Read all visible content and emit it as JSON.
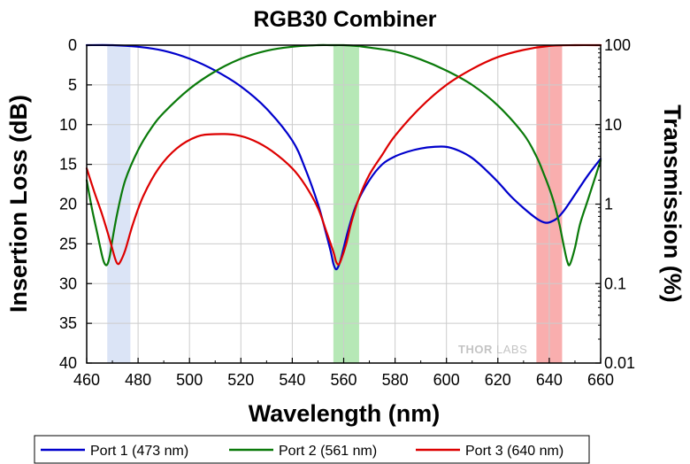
{
  "chart_data": {
    "type": "line",
    "title": "RGB30 Combiner",
    "xlabel": "Wavelength (nm)",
    "ylabel": "Insertion Loss (dB)",
    "y2label": "Transmission (%)",
    "xlim": [
      460,
      660
    ],
    "ylim": [
      0,
      40
    ],
    "y_inverted": true,
    "y2_scale": "log",
    "y2lim": [
      0.01,
      100
    ],
    "xticks": [
      "460",
      "480",
      "500",
      "520",
      "540",
      "560",
      "580",
      "600",
      "620",
      "640",
      "660"
    ],
    "yticks": [
      "0",
      "5",
      "10",
      "15",
      "20",
      "25",
      "30",
      "35",
      "40"
    ],
    "y2ticks": [
      "100",
      "10",
      "1",
      "0.1",
      "0.01"
    ],
    "grid": true,
    "legend_position": "bottom",
    "watermark": {
      "left": "THOR",
      "right": "LABS"
    },
    "bands": [
      {
        "x0": 468,
        "x1": 477,
        "color": "#dbe4f6"
      },
      {
        "x0": 556,
        "x1": 566,
        "color": "#b6e8b6"
      },
      {
        "x0": 635,
        "x1": 645,
        "color": "#f9aeae"
      }
    ],
    "series": [
      {
        "name": "Port 1 (473 nm)",
        "color": "#0000cc",
        "x": [
          460,
          470,
          480,
          490,
          500,
          510,
          520,
          530,
          540,
          545,
          550,
          553,
          555,
          556,
          557,
          558,
          559,
          560,
          562,
          565,
          570,
          575,
          580,
          585,
          590,
          595,
          600,
          605,
          610,
          615,
          620,
          625,
          630,
          635,
          638,
          640,
          643,
          646,
          650,
          655,
          660
        ],
        "values": [
          0,
          0,
          0.2,
          0.7,
          1.7,
          3.2,
          5.2,
          8,
          12,
          15.5,
          20,
          23.5,
          26,
          27.5,
          28.2,
          27.8,
          26.8,
          25.5,
          23,
          20,
          17,
          15,
          14,
          13.4,
          13,
          12.8,
          12.8,
          13.3,
          14.2,
          15.6,
          17.2,
          19,
          20.5,
          21.8,
          22.3,
          22.3,
          21.8,
          20.7,
          18.8,
          16.4,
          14.3
        ]
      },
      {
        "name": "Port 2 (561 nm)",
        "color": "#0a7a0a",
        "x": [
          460,
          462,
          464,
          466,
          467,
          468,
          469,
          470,
          472,
          475,
          480,
          485,
          490,
          500,
          510,
          520,
          530,
          540,
          550,
          555,
          560,
          565,
          570,
          580,
          590,
          600,
          610,
          620,
          630,
          635,
          638,
          640,
          642,
          644,
          645,
          646,
          647,
          648,
          650,
          652,
          655,
          660
        ],
        "values": [
          17,
          20.5,
          23.5,
          26.5,
          27.5,
          27.6,
          26.5,
          24.5,
          21,
          17,
          13.2,
          10.5,
          8.5,
          5.5,
          3.3,
          1.7,
          0.7,
          0.2,
          0,
          0,
          0,
          0.1,
          0.3,
          0.8,
          1.8,
          3.2,
          5,
          7.6,
          11.2,
          14,
          16.3,
          18,
          20,
          22.6,
          24.2,
          25.8,
          27.2,
          27.6,
          25.5,
          22.5,
          19.5,
          14.5
        ]
      },
      {
        "name": "Port 3 (640 nm)",
        "color": "#dd0000",
        "x": [
          460,
          463,
          466,
          469,
          471,
          472,
          473,
          475,
          478,
          482,
          488,
          495,
          503,
          510,
          518,
          525,
          532,
          540,
          545,
          550,
          553,
          556,
          557,
          558,
          559,
          561,
          563,
          566,
          570,
          575,
          580,
          590,
          600,
          610,
          620,
          630,
          640,
          650,
          660
        ],
        "values": [
          15.5,
          18.5,
          21.3,
          24.5,
          26.8,
          27.5,
          27.3,
          25.8,
          22.5,
          19,
          15.5,
          13,
          11.5,
          11.2,
          11.3,
          12,
          13.3,
          15.5,
          17.6,
          20.5,
          23.2,
          26,
          27.2,
          27.6,
          27,
          25,
          22.3,
          19.2,
          16.3,
          13.8,
          11.4,
          7.8,
          5,
          3,
          1.5,
          0.6,
          0.1,
          0,
          0
        ]
      }
    ]
  }
}
